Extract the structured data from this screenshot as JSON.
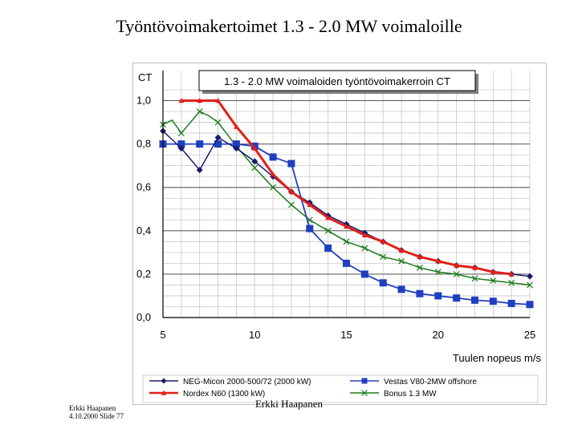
{
  "slide": {
    "title": "Työntövoimakertoimet 1.3 - 2.0 MW voimaloille",
    "footer_author": "Erkki Haapanen",
    "footer_date_slide": "4.10.2000 Slide 77",
    "footer_center": "Erkki Haapanen"
  },
  "chart_data": {
    "type": "line",
    "title": "1.3 - 2.0 MW voimaloiden työntövoimakerroin CT",
    "ylabel": "CT",
    "xlabel": "Tuulen nopeus m/s",
    "xlim": [
      5,
      25
    ],
    "ylim": [
      0,
      1.05
    ],
    "xticks": [
      5,
      10,
      15,
      20,
      25
    ],
    "xtick_labels": [
      "5",
      "10",
      "15",
      "20",
      "25"
    ],
    "yticks": [
      0,
      0.2,
      0.4,
      0.6,
      0.8,
      1.0
    ],
    "ytick_labels": [
      "0,0",
      "0,2",
      "0,4",
      "0,6",
      "0,8",
      "1,0"
    ],
    "grid": true,
    "legend_position": "bottom",
    "series": [
      {
        "name": "NEG-Micon 2000-500/72 (2000 kW)",
        "color": "#1a1a6e",
        "marker": "diamond",
        "x": [
          5,
          6,
          7,
          8,
          9,
          10,
          11,
          12,
          13,
          14,
          15,
          16,
          17,
          18,
          19,
          20,
          21,
          22,
          23,
          24,
          25
        ],
        "y": [
          0.86,
          0.78,
          0.68,
          0.83,
          0.78,
          0.72,
          0.65,
          0.58,
          0.53,
          0.47,
          0.43,
          0.39,
          0.35,
          0.31,
          0.28,
          0.26,
          0.24,
          0.23,
          0.21,
          0.2,
          0.19
        ]
      },
      {
        "name": "Vestas V80-2MW offshore",
        "color": "#1f3fbf",
        "marker": "square",
        "x": [
          5,
          6,
          7,
          8,
          9,
          10,
          11,
          12,
          13,
          14,
          15,
          16,
          17,
          18,
          19,
          20,
          21,
          22,
          23,
          24,
          25
        ],
        "y": [
          0.8,
          0.8,
          0.8,
          0.8,
          0.8,
          0.79,
          0.74,
          0.71,
          0.41,
          0.32,
          0.25,
          0.2,
          0.16,
          0.13,
          0.11,
          0.1,
          0.09,
          0.08,
          0.075,
          0.065,
          0.06
        ]
      },
      {
        "name": "Nordex N60 (1300 kW)",
        "color": "#e0201a",
        "marker": "triangle",
        "x": [
          6,
          7,
          8,
          9,
          10,
          11,
          12,
          13,
          14,
          15,
          16,
          17,
          18,
          19,
          20,
          21,
          22,
          23,
          24
        ],
        "y": [
          1.0,
          1.0,
          1.0,
          0.88,
          0.78,
          0.66,
          0.58,
          0.52,
          0.46,
          0.42,
          0.38,
          0.35,
          0.31,
          0.28,
          0.26,
          0.24,
          0.23,
          0.21,
          0.2
        ]
      },
      {
        "name": "Bonus 1.3 MW",
        "color": "#1a7a1a",
        "marker": "x",
        "x": [
          5,
          5.5,
          6,
          6.5,
          7,
          7.5,
          8,
          9,
          10,
          11,
          12,
          13,
          14,
          15,
          16,
          17,
          18,
          19,
          20,
          21,
          22,
          23,
          24,
          25
        ],
        "y": [
          0.89,
          0.91,
          0.85,
          0.9,
          0.95,
          0.93,
          0.9,
          0.79,
          0.69,
          0.6,
          0.52,
          0.45,
          0.4,
          0.35,
          0.32,
          0.28,
          0.26,
          0.23,
          0.21,
          0.2,
          0.18,
          0.17,
          0.16,
          0.15
        ]
      }
    ]
  }
}
